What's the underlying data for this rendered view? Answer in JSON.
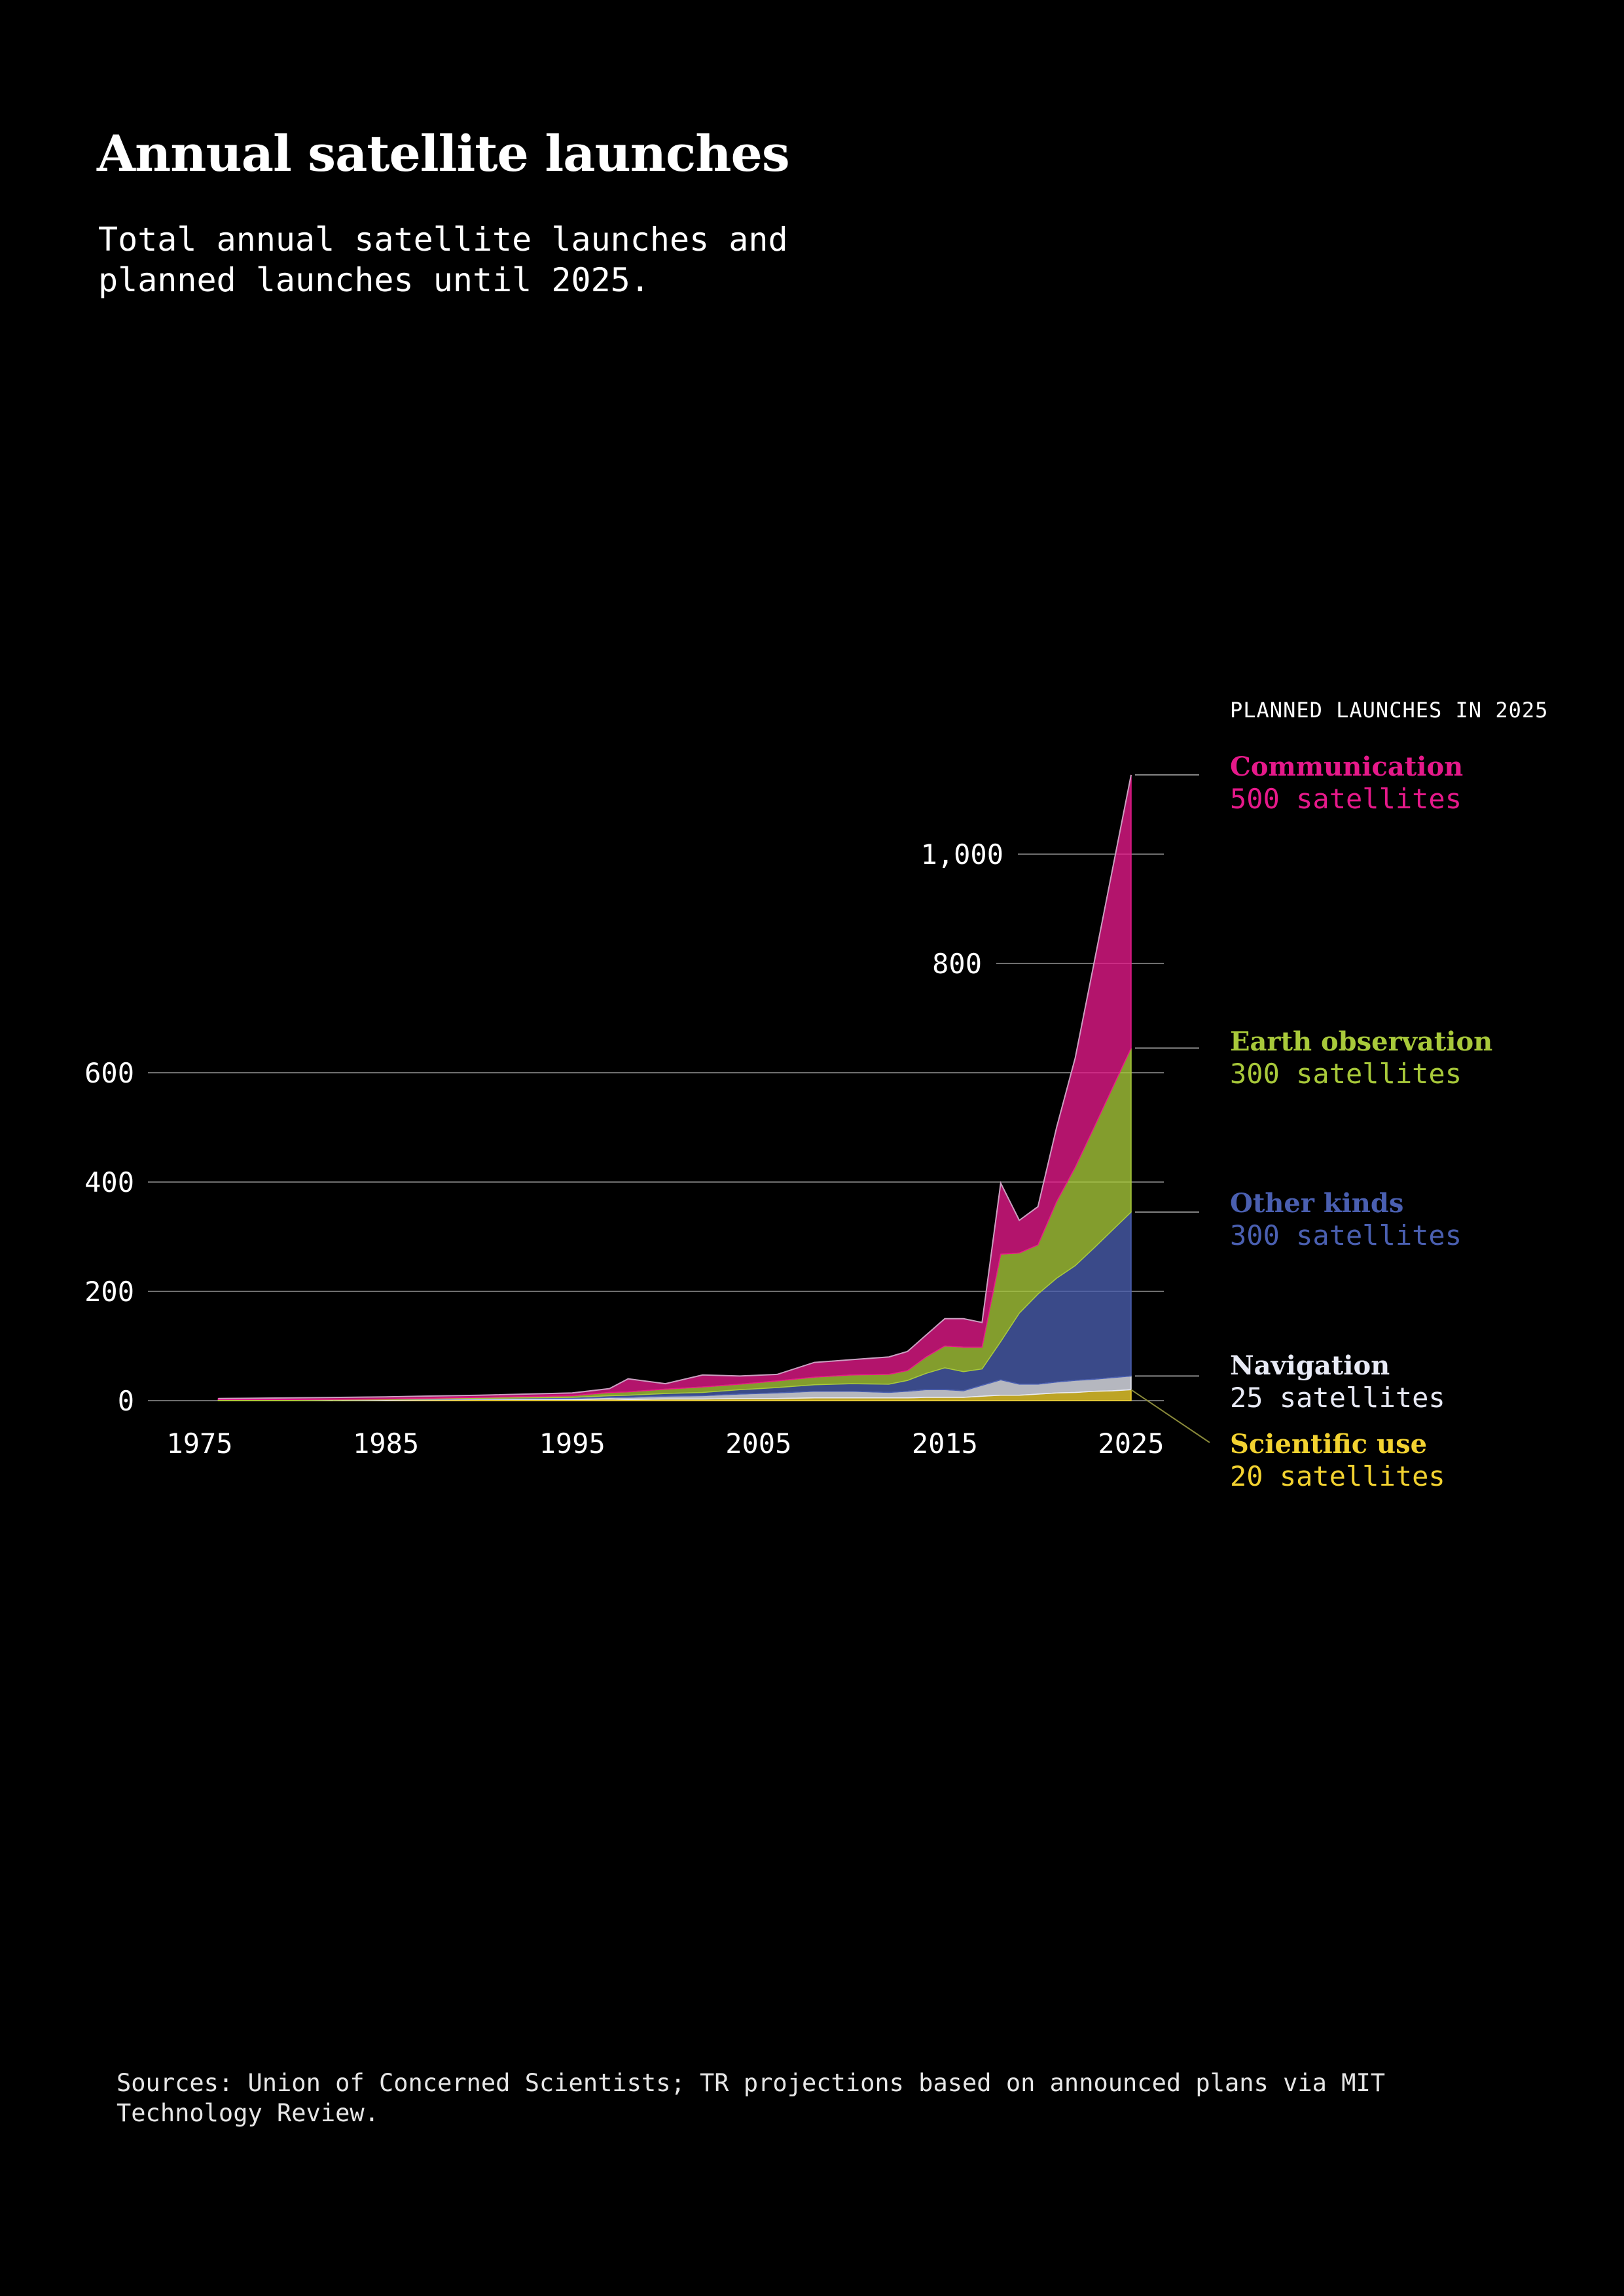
{
  "title": "Annual satellite launches",
  "subtitle": "Total annual satellite launches and planned launches until 2025.",
  "source": "Sources: Union of Concerned Scientists; TR projections based on announced plans via MIT Technology Review.",
  "legend_header": "PLANNED LAUNCHES IN 2025",
  "chart_data": {
    "type": "area",
    "stacked": true,
    "title": "Annual satellite launches",
    "subtitle": "Total annual satellite launches and planned launches until 2025.",
    "xlabel": "",
    "ylabel": "",
    "xlim": [
      1975,
      2025
    ],
    "ylim": [
      0,
      1150
    ],
    "x_ticks": [
      1975,
      1985,
      1995,
      2005,
      2015,
      2025
    ],
    "y_ticks": [
      0,
      200,
      400,
      600,
      800,
      1000
    ],
    "y_tick_labels": [
      "0",
      "200",
      "400",
      "600",
      "800",
      "1,000"
    ],
    "grid": true,
    "legend_position": "right",
    "x": [
      1976,
      1980,
      1985,
      1990,
      1995,
      1997,
      1998,
      2000,
      2002,
      2004,
      2006,
      2008,
      2010,
      2012,
      2013,
      2014,
      2015,
      2016,
      2017,
      2018,
      2019,
      2020,
      2021,
      2022,
      2023,
      2024,
      2025
    ],
    "series": [
      {
        "name": "Scientific use",
        "color": "#f2d230",
        "values": [
          1,
          1,
          1,
          2,
          2,
          3,
          2,
          3,
          3,
          4,
          4,
          5,
          5,
          5,
          5,
          6,
          6,
          6,
          8,
          10,
          10,
          12,
          14,
          15,
          17,
          18,
          20
        ]
      },
      {
        "name": "Navigation",
        "color": "#e8eaf5",
        "values": [
          0,
          0,
          1,
          1,
          2,
          3,
          4,
          5,
          6,
          8,
          10,
          12,
          12,
          10,
          12,
          14,
          14,
          12,
          20,
          28,
          20,
          18,
          20,
          22,
          22,
          24,
          25
        ]
      },
      {
        "name": "Other kinds",
        "color": "#4a5fb0",
        "values": [
          0,
          0,
          0,
          1,
          2,
          3,
          4,
          5,
          6,
          8,
          10,
          12,
          14,
          15,
          20,
          30,
          40,
          35,
          30,
          70,
          130,
          165,
          190,
          210,
          240,
          270,
          300
        ]
      },
      {
        "name": "Earth observation",
        "color": "#a8c93a",
        "values": [
          1,
          1,
          1,
          2,
          3,
          6,
          6,
          8,
          10,
          10,
          12,
          14,
          16,
          18,
          18,
          30,
          40,
          45,
          40,
          160,
          110,
          90,
          140,
          180,
          220,
          260,
          300
        ]
      },
      {
        "name": "Communication",
        "color": "#e6198a",
        "values": [
          2,
          3,
          4,
          4,
          5,
          7,
          24,
          10,
          22,
          15,
          12,
          27,
          28,
          32,
          35,
          40,
          50,
          52,
          45,
          130,
          60,
          70,
          136,
          200,
          300,
          400,
          500
        ]
      }
    ]
  },
  "legend": [
    {
      "name": "Communication",
      "count": "500 satellites",
      "color": "#e6198a",
      "count_color": "#e6198a"
    },
    {
      "name": "Earth observation",
      "count": "300 satellites",
      "color": "#a8c93a",
      "count_color": "#a8c93a"
    },
    {
      "name": "Other kinds",
      "count": "300 satellites",
      "color": "#4a5fb0",
      "count_color": "#4a5fb0"
    },
    {
      "name": "Navigation",
      "count": "25 satellites",
      "color": "#e8eaf5",
      "count_color": "#e8eaf5"
    },
    {
      "name": "Scientific use",
      "count": "20 satellites",
      "color": "#f2d230",
      "count_color": "#f2d230"
    }
  ]
}
